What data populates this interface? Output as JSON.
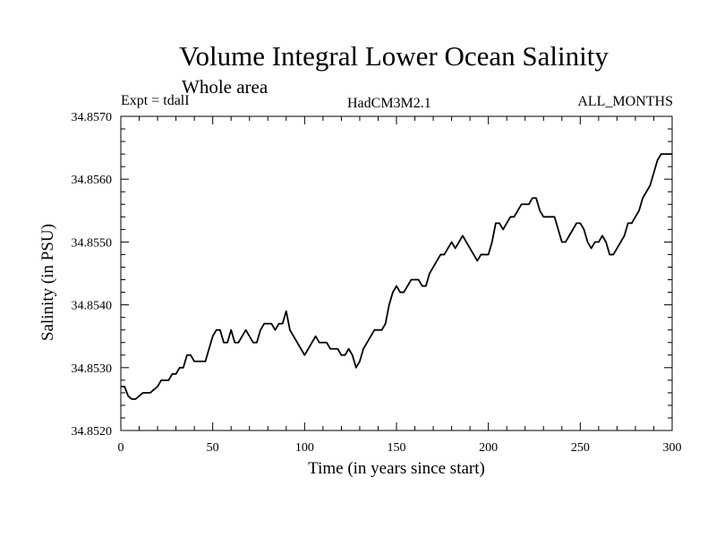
{
  "chart_data": {
    "type": "line",
    "title": "Volume Integral Lower Ocean Salinity",
    "subtitle": "Whole area",
    "annotations": {
      "left": "Expt = tdalI",
      "center": "HadCM3M2.1",
      "right": "ALL_MONTHS"
    },
    "xlabel": "Time (in years since start)",
    "ylabel": "Salinity (in PSU)",
    "xlim": [
      0,
      300
    ],
    "ylim": [
      34.852,
      34.857
    ],
    "x_ticks": [
      0,
      50,
      100,
      150,
      200,
      250,
      300
    ],
    "x_tick_labels": [
      "0",
      "50",
      "100",
      "150",
      "200",
      "250",
      "300"
    ],
    "y_ticks": [
      34.852,
      34.853,
      34.854,
      34.855,
      34.856,
      34.857
    ],
    "y_tick_labels": [
      "34.8520",
      "34.8530",
      "34.8540",
      "34.8550",
      "34.8560",
      "34.8570"
    ],
    "grid": false,
    "series": [
      {
        "name": "Salinity",
        "color": "#000000",
        "x": [
          0,
          2,
          4,
          6,
          8,
          10,
          12,
          14,
          16,
          18,
          20,
          22,
          24,
          26,
          28,
          30,
          32,
          34,
          36,
          38,
          40,
          42,
          44,
          46,
          48,
          50,
          52,
          54,
          56,
          58,
          60,
          62,
          64,
          66,
          68,
          70,
          72,
          74,
          76,
          78,
          80,
          82,
          84,
          86,
          88,
          90,
          92,
          94,
          96,
          98,
          100,
          102,
          104,
          106,
          108,
          110,
          112,
          114,
          116,
          118,
          120,
          122,
          124,
          126,
          128,
          130,
          132,
          134,
          136,
          138,
          140,
          142,
          144,
          146,
          148,
          150,
          152,
          154,
          156,
          158,
          160,
          162,
          164,
          166,
          168,
          170,
          172,
          174,
          176,
          178,
          180,
          182,
          184,
          186,
          188,
          190,
          192,
          194,
          196,
          198,
          200,
          202,
          204,
          206,
          208,
          210,
          212,
          214,
          216,
          218,
          220,
          222,
          224,
          226,
          228,
          230,
          232,
          234,
          236,
          238,
          240,
          242,
          244,
          246,
          248,
          250,
          252,
          254,
          256,
          258,
          260,
          262,
          264,
          266,
          268,
          270,
          272,
          274,
          276,
          278,
          280,
          282,
          284,
          286,
          288,
          290,
          292,
          294,
          296,
          298,
          300
        ],
        "values": [
          34.8527,
          34.8527,
          34.85255,
          34.8525,
          34.8525,
          34.85255,
          34.8526,
          34.8526,
          34.8526,
          34.85265,
          34.8527,
          34.8528,
          34.8528,
          34.8528,
          34.8529,
          34.8529,
          34.853,
          34.853,
          34.8532,
          34.8532,
          34.8531,
          34.8531,
          34.8531,
          34.8531,
          34.8533,
          34.8535,
          34.8536,
          34.8536,
          34.8534,
          34.8534,
          34.8536,
          34.8534,
          34.8534,
          34.8535,
          34.8536,
          34.8535,
          34.8534,
          34.8534,
          34.8536,
          34.8537,
          34.8537,
          34.8537,
          34.8536,
          34.8537,
          34.8537,
          34.8539,
          34.8536,
          34.8535,
          34.8534,
          34.8533,
          34.8532,
          34.8533,
          34.8534,
          34.8535,
          34.8534,
          34.8534,
          34.8534,
          34.8533,
          34.8533,
          34.8533,
          34.8532,
          34.8532,
          34.8533,
          34.8532,
          34.853,
          34.8531,
          34.8533,
          34.8534,
          34.8535,
          34.8536,
          34.8536,
          34.8536,
          34.8537,
          34.854,
          34.8542,
          34.8543,
          34.8542,
          34.8542,
          34.8543,
          34.8544,
          34.8544,
          34.8544,
          34.8543,
          34.8543,
          34.8545,
          34.8546,
          34.8547,
          34.8548,
          34.8548,
          34.8549,
          34.855,
          34.8549,
          34.855,
          34.8551,
          34.855,
          34.8549,
          34.8548,
          34.8547,
          34.8548,
          34.8548,
          34.8548,
          34.855,
          34.8553,
          34.8553,
          34.8552,
          34.8553,
          34.8554,
          34.8554,
          34.8555,
          34.8556,
          34.8556,
          34.8556,
          34.8557,
          34.8557,
          34.8555,
          34.8554,
          34.8554,
          34.8554,
          34.8554,
          34.8552,
          34.855,
          34.855,
          34.8551,
          34.8552,
          34.8553,
          34.8553,
          34.8552,
          34.855,
          34.8549,
          34.855,
          34.855,
          34.8551,
          34.855,
          34.8548,
          34.8548,
          34.8549,
          34.855,
          34.8551,
          34.8553,
          34.8553,
          34.8554,
          34.8555,
          34.8557,
          34.8558,
          34.8559,
          34.8561,
          34.8563,
          34.8564,
          34.8564,
          34.8564,
          34.8564
        ]
      }
    ]
  }
}
